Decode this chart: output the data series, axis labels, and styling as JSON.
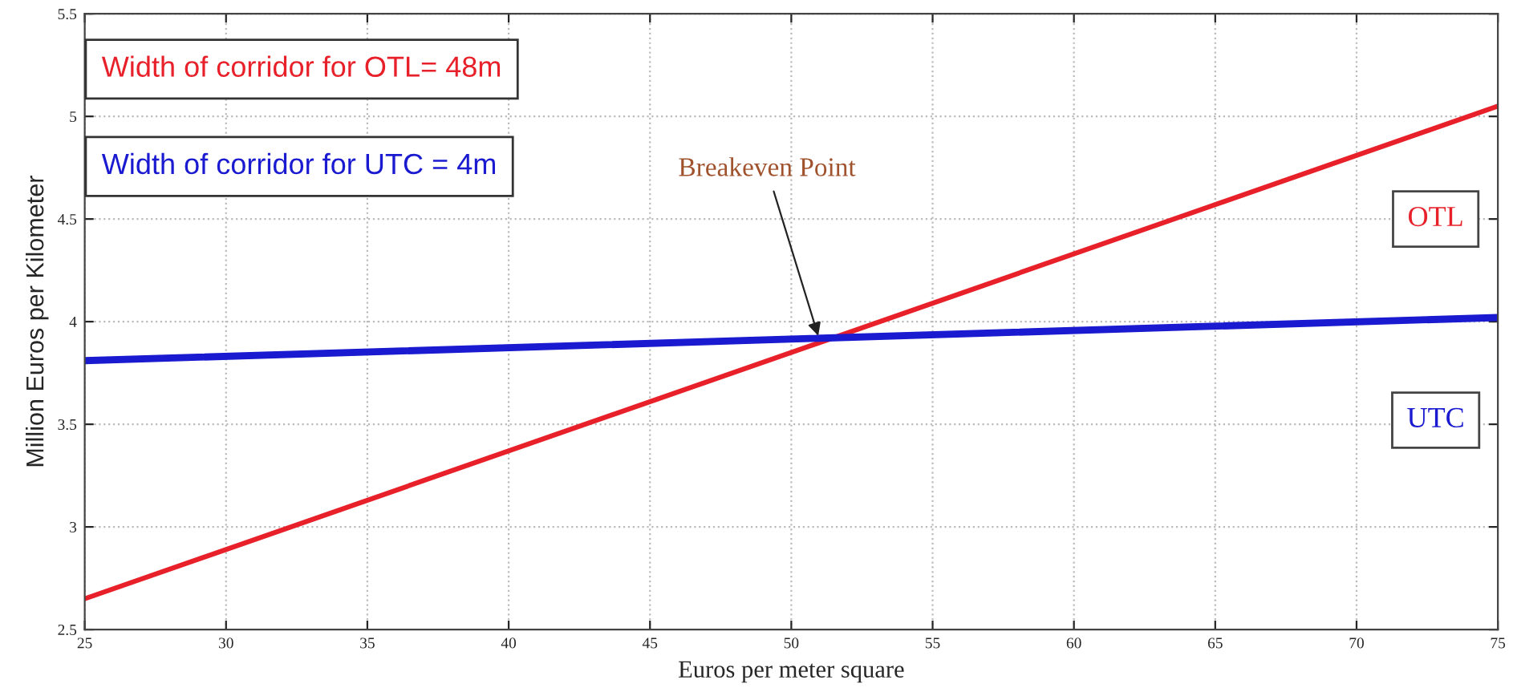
{
  "chart_data": {
    "type": "line",
    "xlabel": "Euros per meter square",
    "ylabel": "Million Euros per Kilometer",
    "x": [
      25,
      75
    ],
    "series": [
      {
        "name": "OTL",
        "color": "#e8202a",
        "values": [
          2.65,
          5.05
        ]
      },
      {
        "name": "UTC",
        "color": "#1a1ad0",
        "values": [
          3.81,
          4.02
        ]
      }
    ],
    "xlim": [
      25,
      75
    ],
    "xticks": [
      25,
      30,
      35,
      40,
      45,
      50,
      55,
      60,
      65,
      70,
      75
    ],
    "ylim": [
      2.5,
      5.5
    ],
    "yticks": [
      2.5,
      3,
      3.5,
      4,
      4.5,
      5,
      5.5
    ],
    "annotations": [
      "Width of corridor for OTL= 48m",
      "Width of corridor for UTC = 4m",
      {
        "text": "Breakeven Point",
        "x": 51,
        "y": 3.91
      }
    ],
    "grid": true,
    "legend": false,
    "line_style": "solid",
    "marker": "none"
  }
}
